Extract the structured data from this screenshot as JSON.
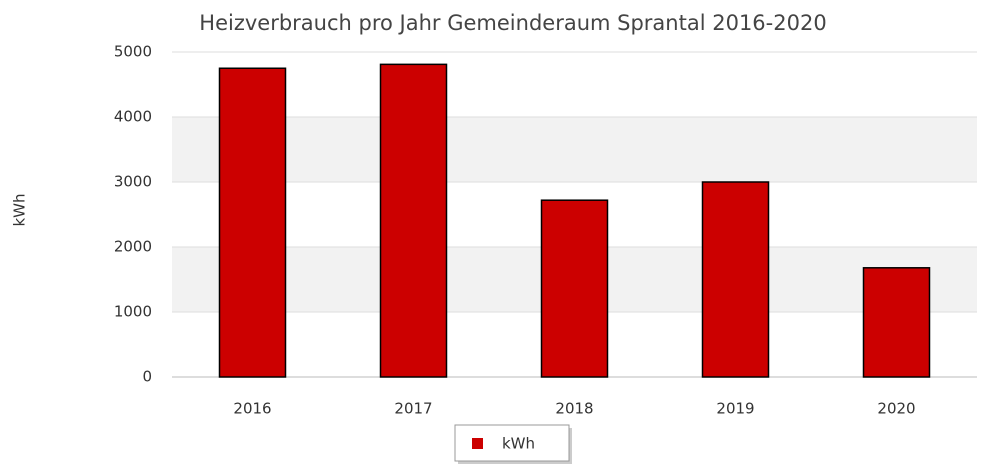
{
  "chart_data": {
    "type": "bar",
    "title": "Heizverbrauch pro Jahr Gemeinderaum Sprantal 2016-2020",
    "y_label": "kWh",
    "categories": [
      "2016",
      "2017",
      "2018",
      "2019",
      "2020"
    ],
    "series": [
      {
        "name": "kWh",
        "color": "#cc0000",
        "values": [
          4750,
          4810,
          2720,
          3000,
          1680
        ]
      }
    ],
    "ylim": [
      0,
      5000
    ],
    "yticks": [
      0,
      1000,
      2000,
      3000,
      4000,
      5000
    ],
    "grid": true,
    "legend": "bottom"
  }
}
